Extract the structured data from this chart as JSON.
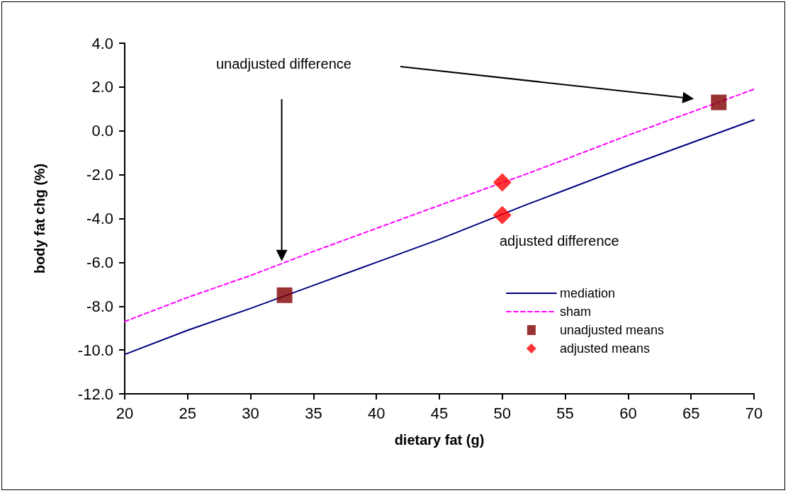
{
  "chart_data": {
    "type": "line",
    "xlabel": "dietary fat (g)",
    "ylabel": "body fat chg (%)",
    "x": [
      20,
      25,
      30,
      35,
      40,
      45,
      52,
      55,
      60,
      65,
      70
    ],
    "series": [
      {
        "name": "mediation",
        "color": "#000080",
        "line_style": "solid",
        "marker": "none",
        "values": [
          -10.2,
          -9.1,
          -8.1,
          -7.05,
          -6.0,
          -4.95,
          -3.35,
          -2.7,
          -1.6,
          -0.55,
          0.5
        ]
      },
      {
        "name": "sham",
        "color": "#ff00ff",
        "line_style": "dashed",
        "marker": "none",
        "values": [
          -8.7,
          -7.6,
          -6.6,
          -5.5,
          -4.45,
          -3.4,
          -1.95,
          -1.3,
          -0.2,
          0.85,
          1.9
        ]
      },
      {
        "name": "unadjusted means",
        "type": "scatter",
        "color": "#800000",
        "marker": "square",
        "x": [
          32.7,
          67.2
        ],
        "values": [
          -7.5,
          1.3
        ]
      },
      {
        "name": "adjusted means",
        "type": "scatter",
        "color": "#ff0000",
        "marker": "diamond",
        "x": [
          50,
          50
        ],
        "values": [
          -2.35,
          -3.85
        ]
      }
    ],
    "xlim": [
      20,
      70
    ],
    "xticks": [
      20,
      25,
      30,
      35,
      40,
      45,
      50,
      55,
      60,
      65,
      70
    ],
    "ylim": [
      -12,
      4
    ],
    "yticks": [
      {
        "value": -12,
        "label": "-12.0"
      },
      {
        "value": -10,
        "label": "-10.0"
      },
      {
        "value": -8,
        "label": "-8.0"
      },
      {
        "value": -6,
        "label": "-6.0"
      },
      {
        "value": -4,
        "label": "-4.0"
      },
      {
        "value": -2,
        "label": "-2.0"
      },
      {
        "value": 0,
        "label": "0.0"
      },
      {
        "value": 2,
        "label": "2.0"
      },
      {
        "value": 4,
        "label": "4.0"
      }
    ],
    "annotations": [
      "unadjusted difference",
      "adjusted difference"
    ],
    "grid": false,
    "legend": "bottom right"
  }
}
